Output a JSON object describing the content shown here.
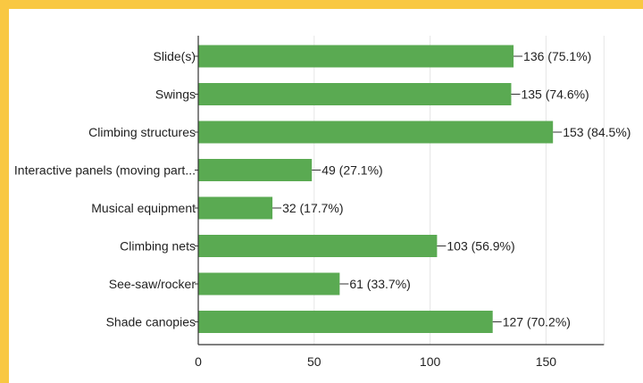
{
  "colors": {
    "background": "#f9c842",
    "bar": "#5aaa52",
    "grid": "#e6e6e6",
    "axis": "#333333"
  },
  "chart_data": {
    "type": "bar",
    "orientation": "horizontal",
    "title": "",
    "xlabel": "",
    "ylabel": "",
    "categories": [
      "Slide(s)",
      "Swings",
      "Climbing structures",
      "Interactive panels (moving part...",
      "Musical equipment",
      "Climbing nets",
      "See-saw/rocker",
      "Shade canopies"
    ],
    "values": [
      136,
      135,
      153,
      49,
      32,
      103,
      61,
      127
    ],
    "percentages": [
      "75.1%",
      "74.6%",
      "84.5%",
      "27.1%",
      "17.7%",
      "56.9%",
      "33.7%",
      "70.2%"
    ],
    "data_labels": [
      "136 (75.1%)",
      "135 (74.6%)",
      "153 (84.5%)",
      "49 (27.1%)",
      "32 (17.7%)",
      "103 (56.9%)",
      "61 (33.7%)",
      "127 (70.2%)"
    ],
    "xlim": [
      0,
      175
    ],
    "x_ticks": [
      0,
      50,
      100,
      150
    ],
    "x_tick_labels": [
      "0",
      "50",
      "100",
      "150"
    ],
    "grid": true,
    "legend": "none"
  }
}
